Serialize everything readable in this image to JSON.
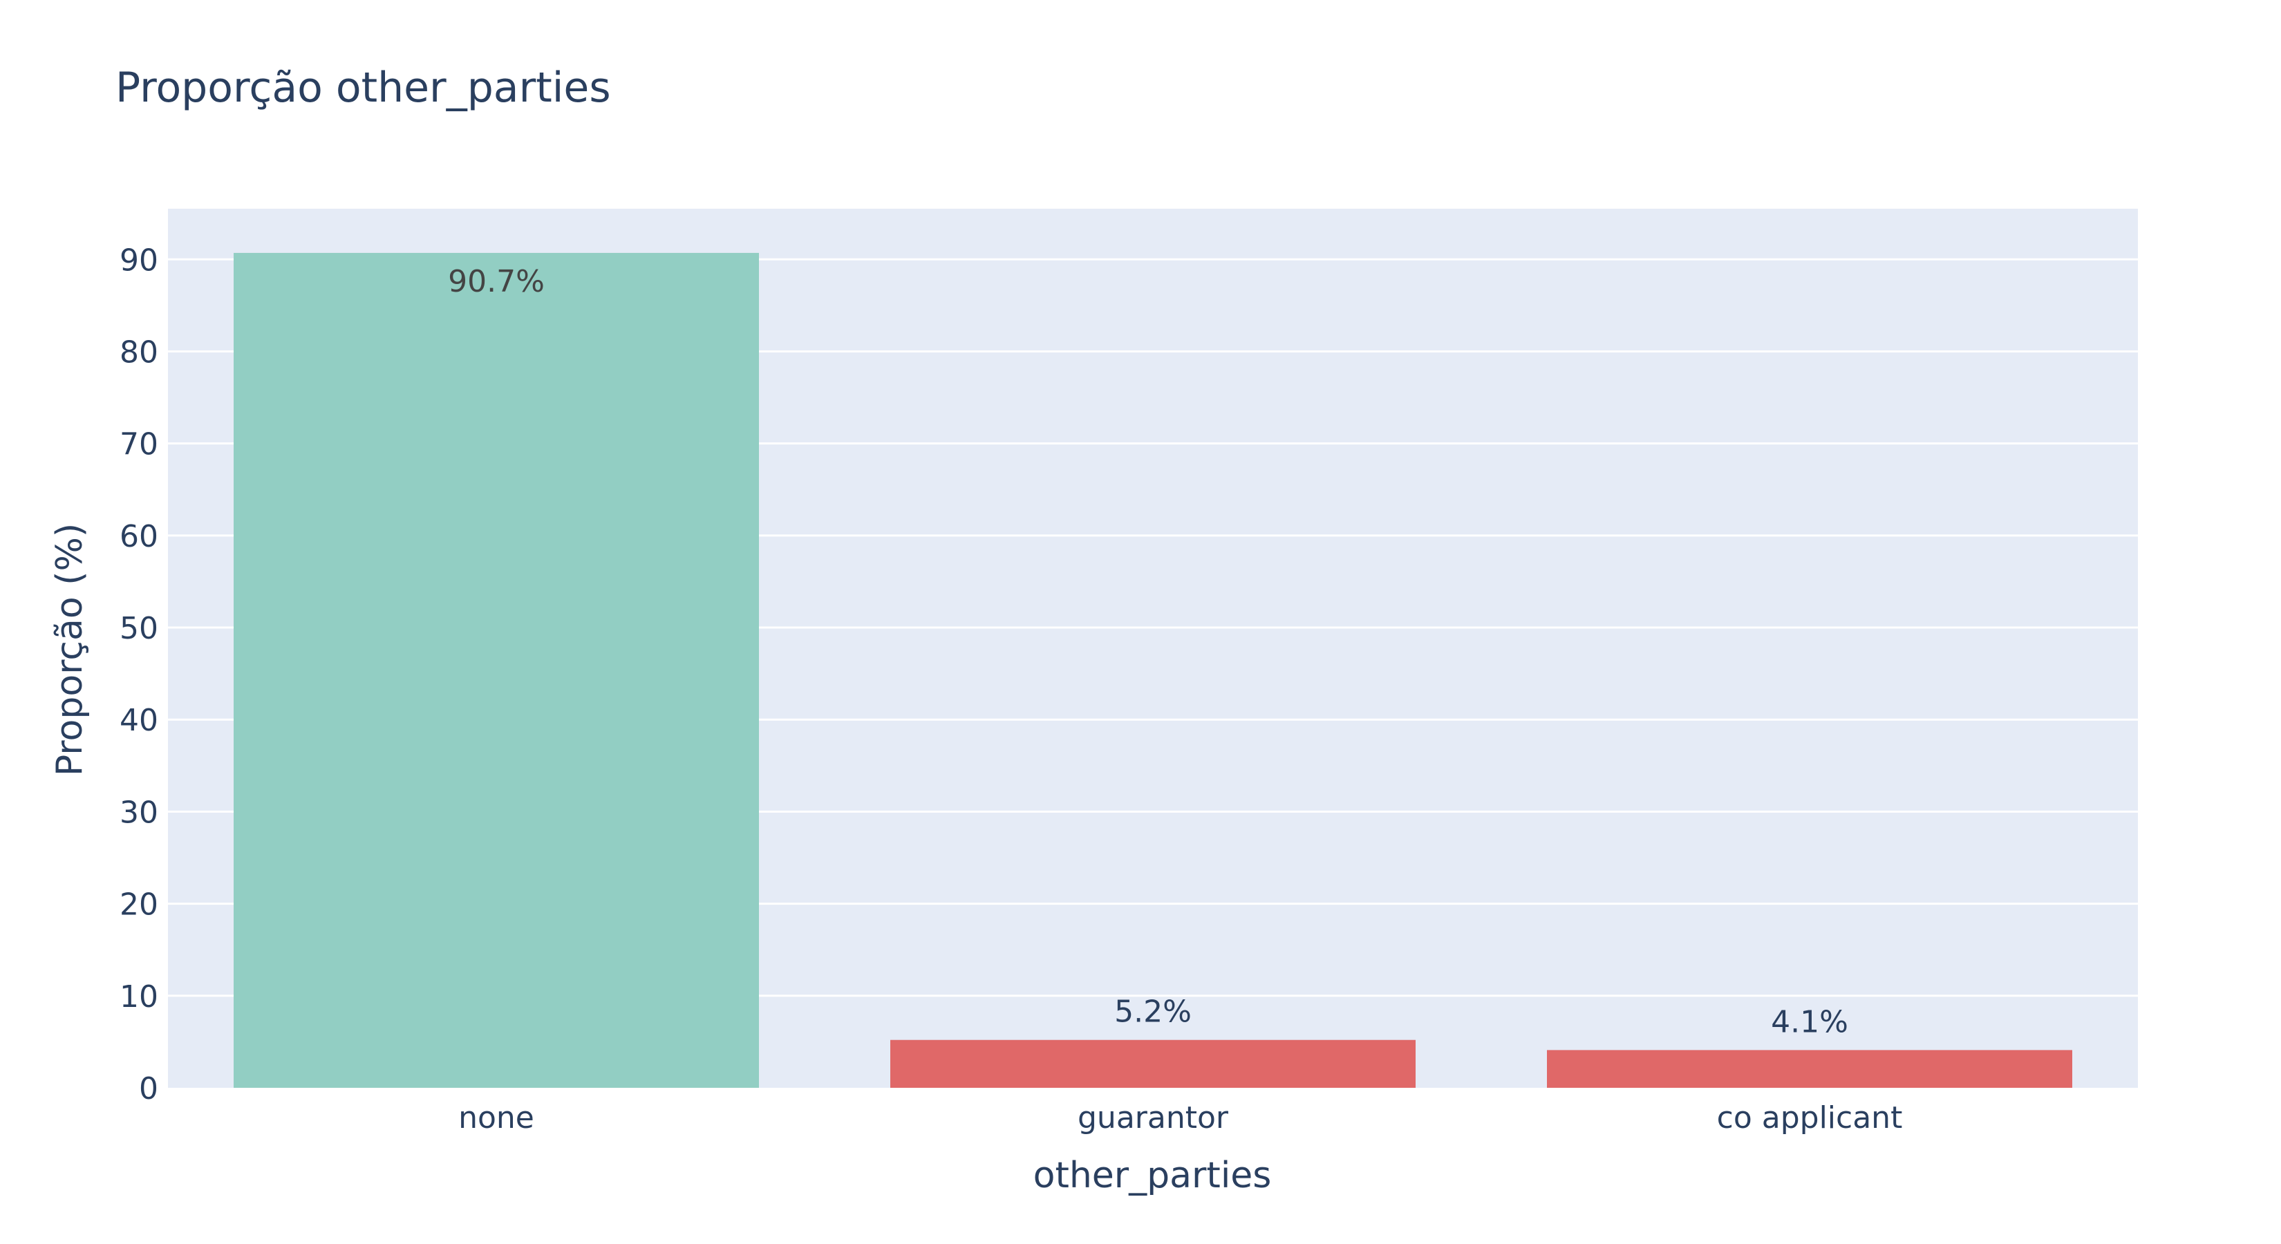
{
  "chart_data": {
    "type": "bar",
    "title": "Proporção other_parties",
    "xlabel": "other_parties",
    "ylabel": "Proporção (%)",
    "categories": [
      "none",
      "guarantor",
      "co applicant"
    ],
    "values": [
      90.7,
      5.2,
      4.1
    ],
    "data_labels": [
      "90.7%",
      "5.2%",
      "4.1%"
    ],
    "bar_colors": [
      "#92cec3",
      "#e06868",
      "#e06868"
    ],
    "ylim": [
      0,
      95.5
    ],
    "yticks": [
      0,
      10,
      20,
      30,
      40,
      50,
      60,
      70,
      80,
      90
    ],
    "grid": true,
    "legend": false,
    "plot_background": "#e5ebf6",
    "text_color": "#2a3f5f"
  }
}
